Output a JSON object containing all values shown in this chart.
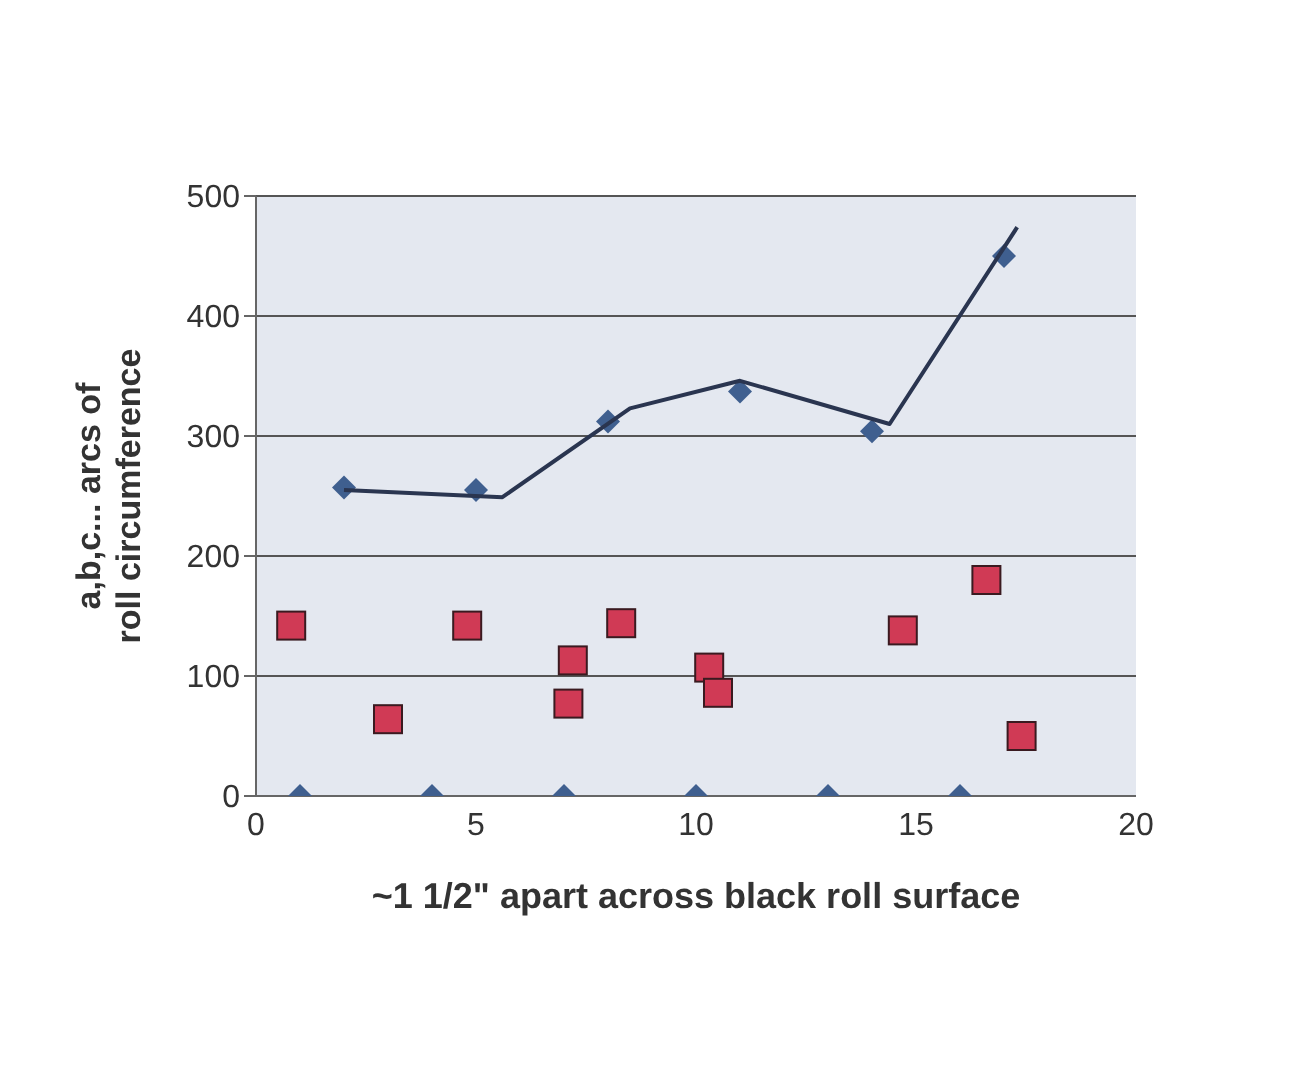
{
  "chart_data": {
    "type": "scatter",
    "xlabel": "~1 1/2\" apart across black roll surface",
    "ylabel": "a,b,c... arcs of roll circumference",
    "xlim": [
      0,
      20
    ],
    "xticks": [
      0,
      5,
      10,
      15,
      20
    ],
    "ylim": [
      0,
      500
    ],
    "yticks": [
      0,
      100,
      200,
      300,
      400,
      500
    ],
    "grid": "y",
    "legend": false,
    "series": [
      {
        "marker": "diamond",
        "color": "#3f5f8f",
        "x": [
          1,
          2,
          4,
          5,
          7,
          8,
          10,
          11,
          13,
          14,
          16,
          17
        ],
        "values": [
          0,
          257,
          0,
          255,
          0,
          312,
          0,
          337,
          0,
          304,
          0,
          450
        ]
      },
      {
        "type": "line",
        "marker": "none",
        "color": "#2a3550",
        "x": [
          2,
          5.6,
          8.5,
          11,
          14.4,
          17.3
        ],
        "values": [
          255,
          249,
          323,
          346,
          310,
          474
        ]
      },
      {
        "marker": "square",
        "color": "#d03a55",
        "x": [
          0.8,
          3,
          4.8,
          7.1,
          7.2,
          8.3,
          10.3,
          10.5,
          14.7,
          16.6,
          17.4
        ],
        "values": [
          142,
          64,
          142,
          77,
          113,
          144,
          107,
          86,
          138,
          180,
          50
        ]
      }
    ]
  }
}
